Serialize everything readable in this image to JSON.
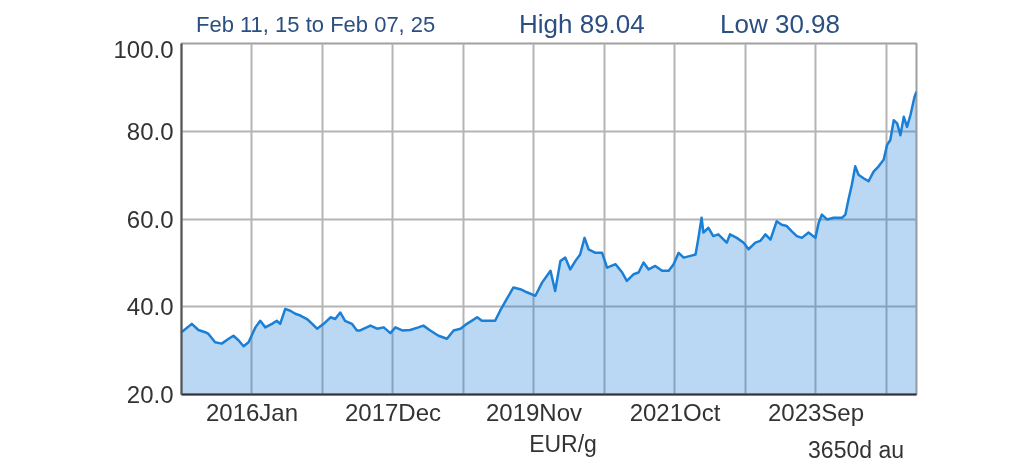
{
  "chart_data": {
    "type": "area",
    "title": "Feb 11, 15 to Feb 07, 25",
    "xlabel": "EUR/g",
    "annotations": [
      "High 89.04",
      "Low 30.98",
      "3650d au"
    ],
    "xlim": [
      "2015-02-11",
      "2025-02-07"
    ],
    "ylim": [
      20,
      100
    ],
    "xticks": [
      {
        "value": "2016-01-27",
        "label": "2016Jan"
      },
      {
        "value": "2017-01-11",
        "label": null
      },
      {
        "value": "2017-12-27",
        "label": "2017Dec"
      },
      {
        "value": "2018-12-12",
        "label": null
      },
      {
        "value": "2019-11-27",
        "label": "2019Nov"
      },
      {
        "value": "2020-11-11",
        "label": null
      },
      {
        "value": "2021-10-27",
        "label": "2021Oct"
      },
      {
        "value": "2022-10-12",
        "label": null
      },
      {
        "value": "2023-09-27",
        "label": "2023Sep"
      },
      {
        "value": "2024-09-11",
        "label": null
      }
    ],
    "yticks": [
      {
        "value": 20,
        "label": "20.0"
      },
      {
        "value": 40,
        "label": "40.0"
      },
      {
        "value": 60,
        "label": "60.0"
      },
      {
        "value": 80,
        "label": "80.0"
      },
      {
        "value": 100,
        "label": "100.0"
      }
    ],
    "grid": true,
    "x": [
      "2015-02-11",
      "2015-04-03",
      "2015-05-06",
      "2015-06-09",
      "2015-06-25",
      "2015-07-28",
      "2015-08-30",
      "2015-10-03",
      "2015-10-27",
      "2015-11-22",
      "2015-12-16",
      "2016-01-10",
      "2016-02-13",
      "2016-03-08",
      "2016-04-02",
      "2016-05-05",
      "2016-05-29",
      "2016-06-15",
      "2016-07-10",
      "2016-08-04",
      "2016-08-29",
      "2016-09-23",
      "2016-10-26",
      "2016-11-21",
      "2016-12-15",
      "2017-01-17",
      "2017-02-20",
      "2017-03-15",
      "2017-04-09",
      "2017-05-03",
      "2017-06-06",
      "2017-07-01",
      "2017-07-17",
      "2017-09-06",
      "2017-10-09",
      "2017-11-11",
      "2017-12-14",
      "2018-01-08",
      "2018-02-11",
      "2018-03-22",
      "2018-05-02",
      "2018-05-27",
      "2018-06-30",
      "2018-08-10",
      "2018-09-21",
      "2018-10-24",
      "2018-11-27",
      "2018-12-29",
      "2019-02-18",
      "2019-03-13",
      "2019-04-15",
      "2019-05-18",
      "2019-06-12",
      "2019-07-15",
      "2019-08-17",
      "2019-09-20",
      "2019-10-23",
      "2019-12-04",
      "2020-01-06",
      "2020-02-17",
      "2020-03-11",
      "2020-04-06",
      "2020-04-30",
      "2020-05-25",
      "2020-06-19",
      "2020-07-13",
      "2020-08-04",
      "2020-08-24",
      "2020-09-27",
      "2020-10-30",
      "2020-11-24",
      "2021-01-05",
      "2021-02-07",
      "2021-03-02",
      "2021-04-04",
      "2021-04-29",
      "2021-05-24",
      "2021-06-18",
      "2021-07-21",
      "2021-08-24",
      "2021-09-26",
      "2021-10-20",
      "2021-11-14",
      "2021-12-09",
      "2022-01-12",
      "2022-02-06",
      "2022-02-19",
      "2022-03-08",
      "2022-03-17",
      "2022-04-11",
      "2022-05-05",
      "2022-05-30",
      "2022-07-11",
      "2022-07-27",
      "2022-08-30",
      "2022-10-03",
      "2022-10-27",
      "2022-11-30",
      "2022-12-24",
      "2023-01-19",
      "2023-02-13",
      "2023-03-16",
      "2023-04-10",
      "2023-05-05",
      "2023-05-30",
      "2023-06-24",
      "2023-07-19",
      "2023-08-21",
      "2023-09-24",
      "2023-10-10",
      "2023-10-26",
      "2023-11-21",
      "2023-12-23",
      "2024-02-04",
      "2024-02-20",
      "2024-03-06",
      "2024-03-23",
      "2024-04-09",
      "2024-04-25",
      "2024-05-20",
      "2024-06-14",
      "2024-07-09",
      "2024-08-03",
      "2024-08-28",
      "2024-09-14",
      "2024-09-30",
      "2024-10-17",
      "2024-11-03",
      "2024-11-19",
      "2024-12-06",
      "2024-12-22",
      "2025-01-08",
      "2025-01-28",
      "2025-02-07"
    ],
    "series": [
      {
        "color": "#1a7fd6",
        "values": [
          34.2,
          36.1,
          34.7,
          34.2,
          33.8,
          31.9,
          31.6,
          32.7,
          33.4,
          32.3,
          31.0,
          31.9,
          35.3,
          36.8,
          35.3,
          36.1,
          36.8,
          36.1,
          39.5,
          39.1,
          38.4,
          38.0,
          37.2,
          36.1,
          35.0,
          36.1,
          37.6,
          37.2,
          38.7,
          36.8,
          36.1,
          34.6,
          34.6,
          35.7,
          35.0,
          35.3,
          34.0,
          35.3,
          34.6,
          34.7,
          35.3,
          35.7,
          34.6,
          33.4,
          32.7,
          34.6,
          35.0,
          36.1,
          37.6,
          36.8,
          36.8,
          36.8,
          39.1,
          41.8,
          44.4,
          44.0,
          43.3,
          42.5,
          45.5,
          48.2,
          43.6,
          50.4,
          51.2,
          48.5,
          50.4,
          51.9,
          55.7,
          53.1,
          52.3,
          52.3,
          48.9,
          49.7,
          47.8,
          45.9,
          47.4,
          47.8,
          50.1,
          48.5,
          49.3,
          48.2,
          48.2,
          49.7,
          52.3,
          51.2,
          51.6,
          51.9,
          55.3,
          60.3,
          56.9,
          58.0,
          56.1,
          56.5,
          54.6,
          56.5,
          55.7,
          54.6,
          53.1,
          54.6,
          55.0,
          56.5,
          55.3,
          59.5,
          58.7,
          58.4,
          57.2,
          56.1,
          55.7,
          56.9,
          55.7,
          59.1,
          61.0,
          59.9,
          60.3,
          60.3,
          61.0,
          64.4,
          67.8,
          72.0,
          70.1,
          69.3,
          68.6,
          70.8,
          72.0,
          73.5,
          76.9,
          78.0,
          82.5,
          81.8,
          79.1,
          83.3,
          81.0,
          83.7,
          87.8,
          89.0
        ]
      }
    ]
  }
}
